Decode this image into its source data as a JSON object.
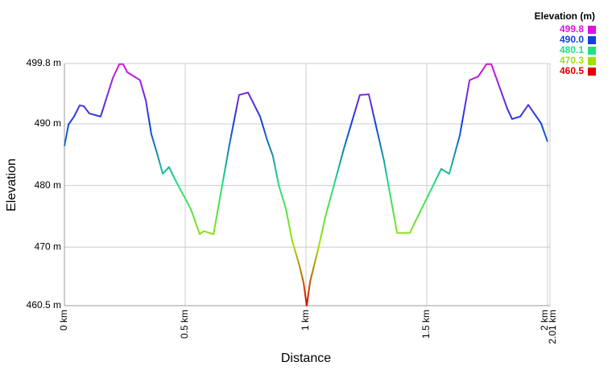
{
  "chart_data": {
    "type": "line",
    "xlabel": "Distance",
    "ylabel": "Elevation",
    "legend_title": "Elevation (m)",
    "color_scale": [
      {
        "value": 499.8,
        "label": "499.8",
        "color": "#e010e0"
      },
      {
        "value": 490.0,
        "label": "490.0",
        "color": "#1040e0"
      },
      {
        "value": 480.1,
        "label": "480.1",
        "color": "#20e080"
      },
      {
        "value": 470.3,
        "label": "470.3",
        "color": "#a0e000"
      },
      {
        "value": 460.5,
        "label": "460.5",
        "color": "#e00000"
      }
    ],
    "x": [
      0,
      0.017,
      0.04,
      0.063,
      0.08,
      0.103,
      0.15,
      0.2,
      0.227,
      0.243,
      0.26,
      0.313,
      0.337,
      0.36,
      0.383,
      0.407,
      0.433,
      0.463,
      0.523,
      0.56,
      0.577,
      0.617,
      0.683,
      0.723,
      0.76,
      0.81,
      0.84,
      0.863,
      0.887,
      0.917,
      0.943,
      0.973,
      0.99,
      1.003,
      1.017,
      1.05,
      1.08,
      1.107,
      1.157,
      1.223,
      1.26,
      1.323,
      1.377,
      1.43,
      1.453,
      1.56,
      1.593,
      1.637,
      1.677,
      1.713,
      1.747,
      1.767,
      1.833,
      1.853,
      1.887,
      1.92,
      1.973,
      2.0
    ],
    "series": [
      {
        "name": "Elevation",
        "values": [
          486.4,
          489.9,
          491.2,
          493.0,
          492.9,
          491.7,
          491.2,
          497.4,
          499.7,
          499.7,
          498.4,
          497.1,
          493.8,
          488.3,
          485.3,
          481.9,
          483.0,
          480.6,
          476.2,
          472.1,
          472.6,
          472.1,
          486.6,
          494.7,
          495.1,
          491.2,
          487.3,
          484.8,
          480.1,
          476.2,
          471.0,
          467.0,
          464.2,
          460.5,
          464.4,
          469.6,
          474.9,
          478.8,
          486.0,
          494.7,
          494.8,
          484.0,
          472.3,
          472.3,
          474.2,
          482.7,
          481.9,
          488.2,
          497.1,
          497.7,
          499.7,
          499.7,
          492.5,
          490.8,
          491.2,
          493.1,
          490.1,
          487.1
        ]
      }
    ],
    "xlim": [
      0,
      2.01
    ],
    "ylim": [
      460.5,
      499.8
    ],
    "xticks": [
      {
        "value": 0,
        "label": "0 km"
      },
      {
        "value": 0.5,
        "label": "0.5 km"
      },
      {
        "value": 1,
        "label": "1 km"
      },
      {
        "value": 1.5,
        "label": "1.5 km"
      },
      {
        "value": 2,
        "label": "2 km"
      },
      {
        "value": 2.01,
        "label": "2.01 km"
      }
    ],
    "yticks": [
      {
        "value": 460.5,
        "label": "460.5 m"
      },
      {
        "value": 470,
        "label": "470 m"
      },
      {
        "value": 480,
        "label": "480 m"
      },
      {
        "value": 490,
        "label": "490 m"
      },
      {
        "value": 499.8,
        "label": "499.8 m"
      }
    ],
    "grid": true
  }
}
